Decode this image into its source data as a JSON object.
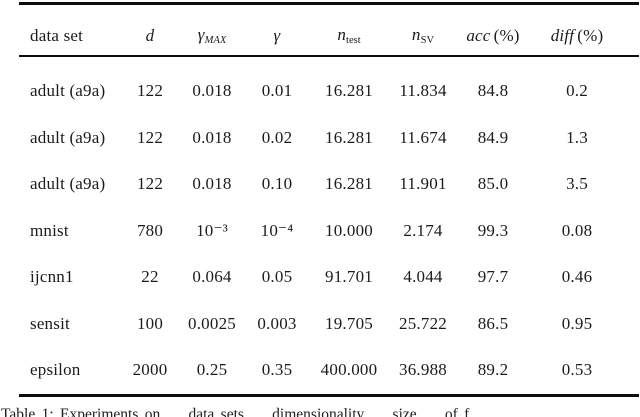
{
  "page": {
    "background_color": "#ffffff",
    "text_color": "#1b1b1b",
    "rule_color": "#0d0d0d"
  },
  "table": {
    "column_keys": [
      "dataset",
      "d",
      "gamma_max",
      "gamma",
      "n_test",
      "n_sv",
      "acc",
      "diff"
    ],
    "header": {
      "dataset": "data set",
      "d": "d",
      "gamma_max_base": "γ",
      "gamma_max_sub": "MAX",
      "gamma": "γ",
      "n_test_base": "n",
      "n_test_sub": "test",
      "n_sv_base": "n",
      "n_sv_sub": "SV",
      "acc_base": "acc",
      "acc_suffix": "(%)",
      "diff_base": "diff",
      "diff_suffix": "(%)"
    },
    "rows": [
      [
        "adult (a9a)",
        "122",
        "0.018",
        "0.01",
        "16.281",
        "11.834",
        "84.8",
        "0.2"
      ],
      [
        "adult (a9a)",
        "122",
        "0.018",
        "0.02",
        "16.281",
        "11.674",
        "84.9",
        "1.3"
      ],
      [
        "adult (a9a)",
        "122",
        "0.018",
        "0.10",
        "16.281",
        "11.901",
        "85.0",
        "3.5"
      ],
      [
        "mnist",
        "780",
        "10⁻³",
        "10⁻⁴",
        "10.000",
        "2.174",
        "99.3",
        "0.08"
      ],
      [
        "ijcnn1",
        "22",
        "0.064",
        "0.05",
        "91.701",
        "4.044",
        "97.7",
        "0.46"
      ],
      [
        "sensit",
        "100",
        "0.0025",
        "0.003",
        "19.705",
        "25.722",
        "86.5",
        "0.95"
      ],
      [
        "epsilon",
        "2000",
        "0.25",
        "0.35",
        "400.000",
        "36.988",
        "89.2",
        "0.53"
      ]
    ]
  },
  "caption": {
    "text": "Table 1:  Experiments on … data sets … dimensionality … size … of f…"
  }
}
